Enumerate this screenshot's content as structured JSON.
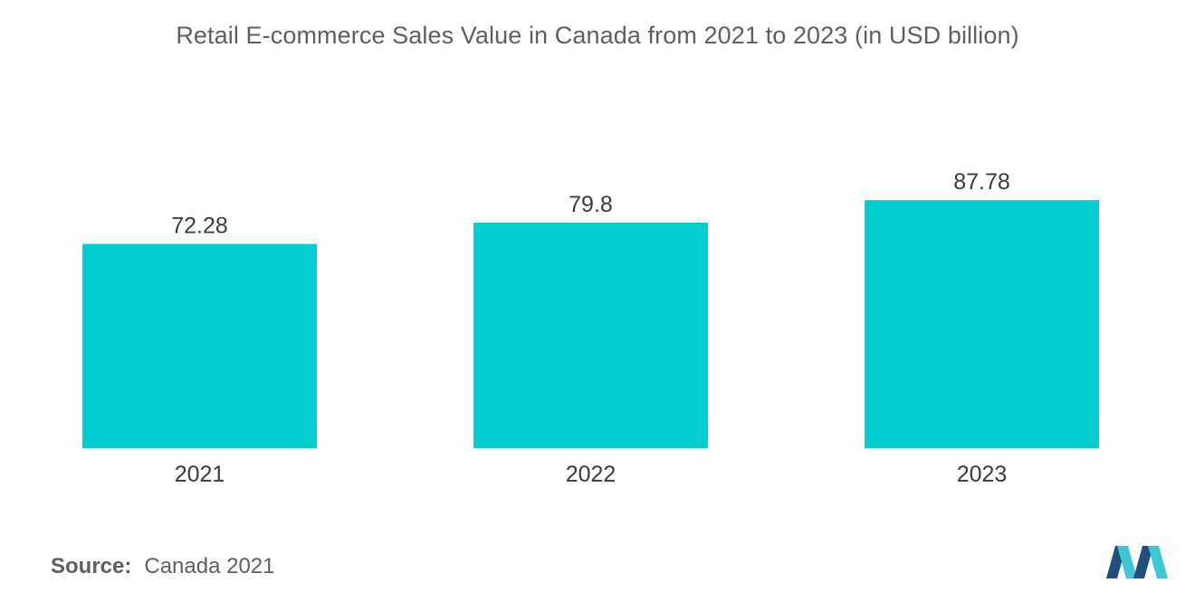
{
  "chart_data": {
    "type": "bar",
    "title": "Retail E-commerce Sales Value in Canada from 2021 to 2023 (in USD billion)",
    "categories": [
      "2021",
      "2022",
      "2023"
    ],
    "values": [
      72.28,
      79.8,
      87.78
    ],
    "value_labels": [
      "72.28",
      "79.8",
      "87.78"
    ],
    "xlabel": "",
    "ylabel": "",
    "ylim": [
      0,
      100
    ],
    "grid": false,
    "legend": "none",
    "bar_color": "#00CED1"
  },
  "source": {
    "label": "Source:",
    "text": "Canada 2021"
  },
  "logo": {
    "icon": "mordor-intelligence-logo-icon",
    "color_dark": "#1f4f7a",
    "color_light": "#3cc6d6"
  }
}
